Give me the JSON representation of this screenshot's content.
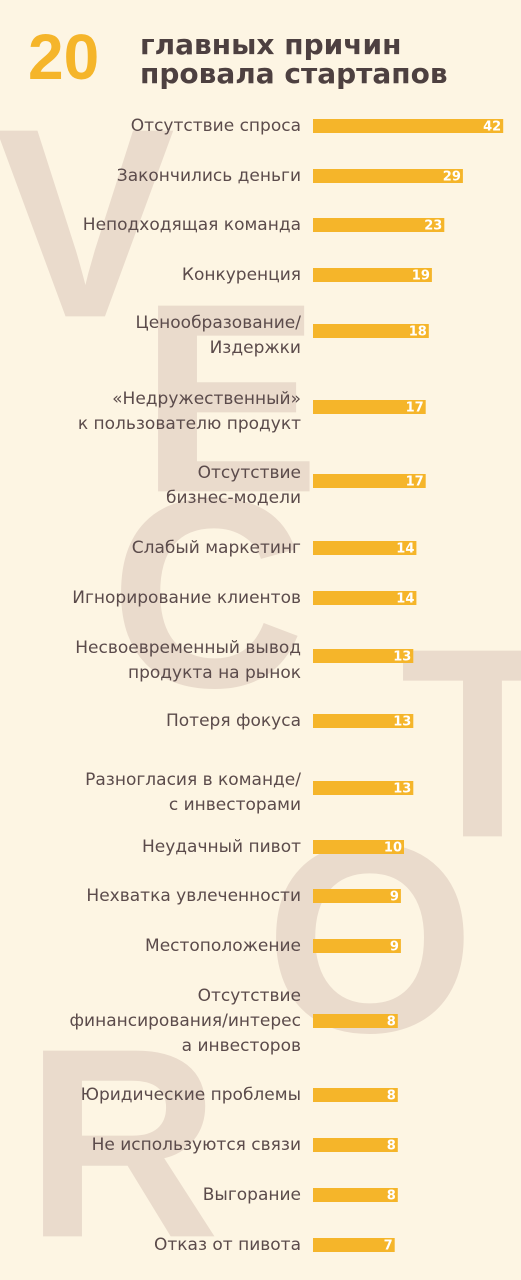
{
  "chart_data": {
    "type": "bar",
    "title_number": "20",
    "title_lines": [
      "главных причин",
      "провала стартапов"
    ],
    "watermark": [
      "V",
      "E",
      "C",
      "T",
      "O",
      "R"
    ],
    "categories": [
      [
        "Отсутствие спроса"
      ],
      [
        "Закончились деньги"
      ],
      [
        "Неподходящая команда"
      ],
      [
        "Конкуренция"
      ],
      [
        "Ценообразование/",
        "Издержки"
      ],
      [
        "«Недружественный»",
        "к пользователю продукт"
      ],
      [
        "Отсутствие",
        "бизнес-модели"
      ],
      [
        "Слабый маркетинг"
      ],
      [
        "Игнорирование клиентов"
      ],
      [
        "Несвоевременный вывод",
        "продукта на рынок"
      ],
      [
        "Потеря фокуса"
      ],
      [
        "Разногласия в команде/",
        "с инвесторами"
      ],
      [
        "Неудачный пивот"
      ],
      [
        "Нехватка увлеченности"
      ],
      [
        "Местоположение"
      ],
      [
        "Отсутствие",
        "финансирования/интерес",
        "а инвесторов"
      ],
      [
        "Юридические проблемы"
      ],
      [
        "Не используются связи"
      ],
      [
        "Выгорание"
      ],
      [
        "Отказ от пивота"
      ]
    ],
    "values": [
      42,
      29,
      23,
      19,
      18,
      17,
      17,
      14,
      14,
      13,
      13,
      13,
      10,
      9,
      9,
      8,
      8,
      8,
      8,
      7
    ],
    "color": "#f5b52a"
  }
}
